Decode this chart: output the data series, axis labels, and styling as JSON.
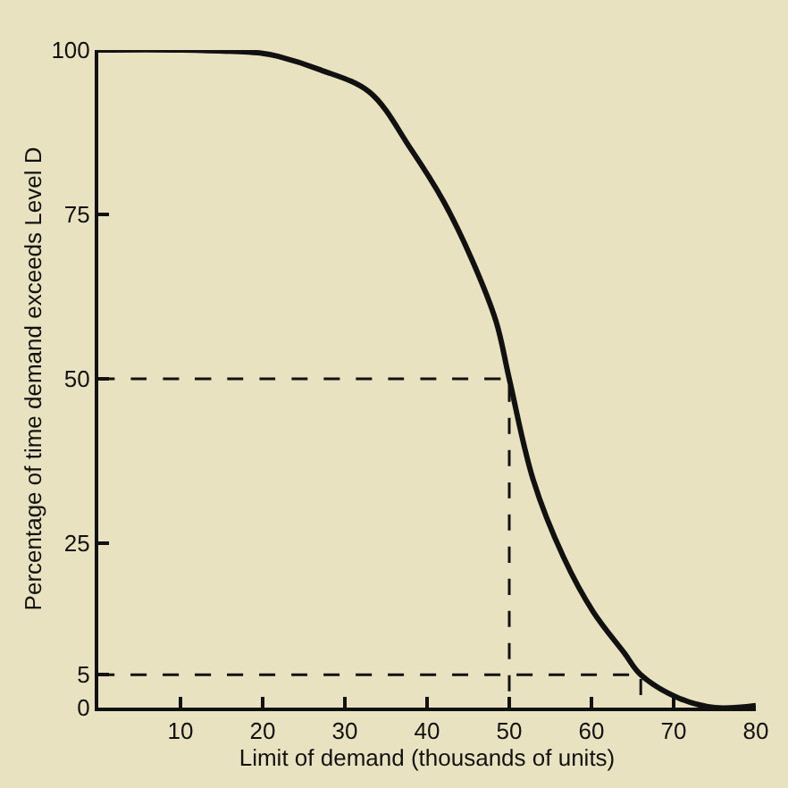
{
  "chart_data": {
    "type": "line",
    "xlabel": "Limit of demand (thousands of units)",
    "ylabel": "Percentage of time demand exceeds Level D",
    "xlim": [
      0,
      80
    ],
    "ylim": [
      0,
      100
    ],
    "xticks": [
      10,
      20,
      30,
      40,
      50,
      60,
      70,
      80
    ],
    "yticks": [
      0,
      5,
      25,
      50,
      75,
      100
    ],
    "grid": false,
    "marker": "none",
    "series": [
      {
        "color": "#111111",
        "line_style": "solid",
        "x": [
          0,
          10,
          20,
          22,
          27,
          33,
          38,
          42,
          45.5,
          48.4,
          50,
          52.9,
          56.6,
          60.2,
          64,
          66,
          70.7,
          75,
          80
        ],
        "values": [
          100,
          100,
          99.5,
          99,
          97,
          93.6,
          85,
          77,
          68,
          58.7,
          50,
          34.7,
          22.9,
          14.6,
          8.3,
          5,
          1.4,
          0,
          0.3
        ]
      },
      {
        "color": "#111111",
        "line_style": "dashed",
        "x": [
          0,
          50,
          50
        ],
        "values": [
          50,
          50,
          0
        ]
      },
      {
        "color": "#111111",
        "line_style": "dashed",
        "x": [
          0,
          66,
          66
        ],
        "values": [
          5,
          5,
          0
        ]
      }
    ]
  }
}
